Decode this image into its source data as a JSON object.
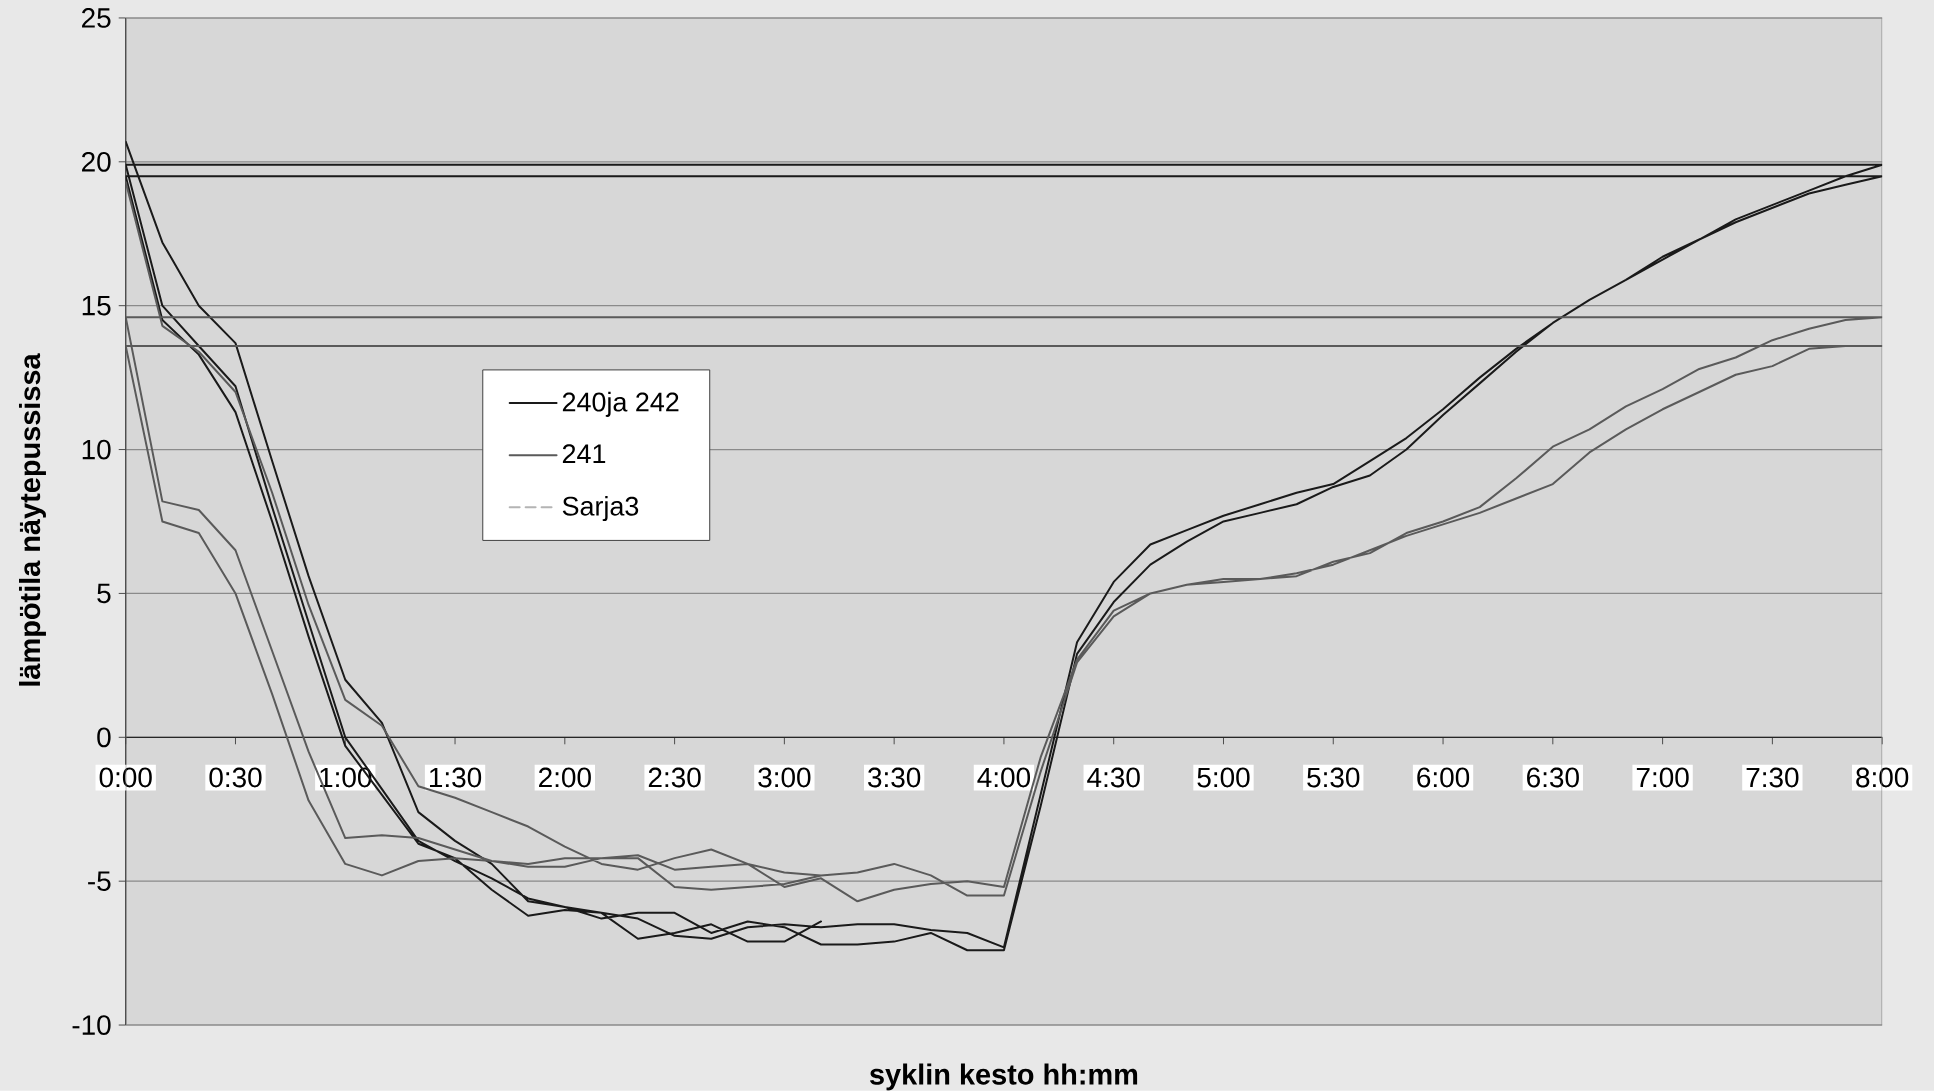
{
  "chart_data": {
    "type": "line",
    "xlabel": "syklin kesto hh:mm",
    "ylabel": "lämpötila näytepussissa",
    "xlim": [
      0,
      8
    ],
    "ylim": [
      -10,
      25
    ],
    "xticks": [
      {
        "value": 0,
        "label": "0:00"
      },
      {
        "value": 0.5,
        "label": "0:30"
      },
      {
        "value": 1,
        "label": "1:00"
      },
      {
        "value": 1.5,
        "label": "1:30"
      },
      {
        "value": 2,
        "label": "2:00"
      },
      {
        "value": 2.5,
        "label": "2:30"
      },
      {
        "value": 3,
        "label": "3:00"
      },
      {
        "value": 3.5,
        "label": "3:30"
      },
      {
        "value": 4,
        "label": "4:00"
      },
      {
        "value": 4.5,
        "label": "4:30"
      },
      {
        "value": 5,
        "label": "5:00"
      },
      {
        "value": 5.5,
        "label": "5:30"
      },
      {
        "value": 6,
        "label": "6:00"
      },
      {
        "value": 6.5,
        "label": "6:30"
      },
      {
        "value": 7,
        "label": "7:00"
      },
      {
        "value": 7.5,
        "label": "7:30"
      },
      {
        "value": 8,
        "label": "8:00"
      }
    ],
    "yticks": [
      -10,
      -5,
      0,
      5,
      10,
      15,
      20,
      25
    ],
    "grid": "y",
    "legend": "top left",
    "series": [
      {
        "name": "240ja 242",
        "color": "#1a1a1a",
        "x": [
          0,
          0.167,
          0.333,
          0.5,
          0.667,
          0.833,
          1,
          1.167,
          1.333,
          1.5,
          1.667,
          1.833,
          2,
          2.167,
          2.333,
          2.5,
          2.667,
          2.833,
          3,
          3.167,
          3.333,
          3.5,
          3.667,
          3.833,
          4,
          4.167,
          4.333,
          4.5,
          4.667,
          4.833,
          5,
          5.167,
          5.333,
          5.5,
          5.667,
          5.833,
          6,
          6.167,
          6.333,
          6.5,
          6.667,
          6.833,
          7,
          7.167,
          7.333,
          7.5,
          7.667,
          7.833,
          8,
          0,
          0.167,
          0.333,
          0.5,
          0.667,
          0.833,
          1,
          1.167,
          1.333,
          1.5,
          1.667,
          1.833,
          2,
          2.167,
          2.333,
          2.5,
          2.667,
          2.833,
          3,
          3.167,
          3.333,
          3.5,
          3.667,
          3.833,
          4,
          4.167,
          4.333,
          4.5,
          4.667,
          4.833,
          5,
          5.167,
          5.333,
          5.5,
          5.667,
          5.833,
          6,
          6.167,
          6.333,
          6.5,
          6.667,
          6.833,
          7,
          7.167,
          7.333,
          7.5,
          7.667,
          7.833,
          8,
          0,
          0.167,
          0.333,
          0.5,
          0.667,
          0.833,
          1,
          1.167,
          1.333,
          1.5,
          1.667,
          1.833,
          2,
          2.167,
          2.333,
          2.5,
          2.667,
          2.833,
          3,
          3.167
        ],
        "values": [
          20.7,
          17.2,
          15.0,
          13.7,
          9.6,
          5.6,
          2.0,
          0.5,
          -2.6,
          -3.6,
          -4.4,
          -5.7,
          -5.9,
          -6.1,
          -6.3,
          -6.9,
          -7.0,
          -6.6,
          -6.5,
          -6.6,
          -6.5,
          -6.5,
          -6.7,
          -6.8,
          -7.3,
          -2.0,
          3.3,
          5.4,
          6.7,
          7.2,
          7.7,
          8.1,
          8.5,
          8.8,
          9.6,
          10.4,
          11.4,
          12.5,
          13.5,
          14.4,
          15.2,
          15.9,
          16.7,
          17.3,
          18.0,
          18.5,
          19.0,
          19.5,
          19.9,
          19.9,
          15.0,
          13.6,
          12.2,
          8.0,
          4.0,
          0.0,
          -1.8,
          -3.6,
          -4.3,
          -4.9,
          -5.6,
          -5.9,
          -6.3,
          -6.1,
          -6.1,
          -6.8,
          -6.4,
          -6.6,
          -7.2,
          -7.2,
          -7.1,
          -6.8,
          -7.4,
          -7.4,
          -2.4,
          2.9,
          4.7,
          6.0,
          6.8,
          7.5,
          7.8,
          8.1,
          8.7,
          9.1,
          10.0,
          11.2,
          12.3,
          13.4,
          14.4,
          15.2,
          15.9,
          16.6,
          17.3,
          17.9,
          18.4,
          18.9,
          19.2,
          19.5,
          19.5,
          14.5,
          13.3,
          11.3,
          7.5,
          3.5,
          -0.3,
          -2.0,
          -3.7,
          -4.2,
          -5.3,
          -6.2,
          -6.0,
          -6.1,
          -7.0,
          -6.8,
          -6.5,
          -7.1,
          -7.1,
          -6.4
        ]
      },
      {
        "name": "241",
        "color": "#5a5a5a",
        "x": [
          0,
          0.167,
          0.333,
          0.5,
          0.667,
          0.833,
          1,
          1.167,
          1.333,
          1.5,
          1.667,
          1.833,
          2,
          2.167,
          2.333,
          2.5,
          2.667,
          2.833,
          3,
          3.167,
          3.333,
          3.5,
          3.667,
          3.833,
          4,
          4.167,
          4.333,
          4.5,
          4.667,
          4.833,
          5,
          5.167,
          5.333,
          5.5,
          5.667,
          5.833,
          6,
          6.167,
          6.333,
          6.5,
          6.667,
          6.833,
          7,
          7.167,
          7.333,
          7.5,
          7.667,
          7.833,
          8,
          0,
          0.167,
          0.333,
          0.5,
          0.667,
          0.833,
          1,
          1.167,
          1.333,
          1.5,
          1.667,
          1.833,
          2,
          2.167,
          2.333,
          2.5,
          2.667,
          2.833,
          3,
          3.167,
          3.333,
          3.5,
          3.667,
          3.833,
          4,
          4.167,
          4.333,
          4.5,
          4.667,
          4.833,
          5,
          5.167,
          5.333,
          5.5,
          5.667,
          5.833,
          6,
          6.167,
          6.333,
          6.5,
          6.667,
          6.833,
          7,
          7.167,
          7.333,
          7.5,
          7.667,
          7.833,
          8,
          0,
          0.167,
          0.333,
          0.5,
          0.667,
          0.833,
          1,
          1.167,
          1.333,
          1.5,
          1.667,
          1.833,
          2,
          2.167,
          2.333,
          2.5,
          2.667,
          2.833,
          3,
          3.167
        ],
        "values": [
          19.3,
          14.3,
          13.4,
          12.0,
          8.5,
          4.6,
          1.3,
          0.4,
          -1.7,
          -2.1,
          -2.6,
          -3.1,
          -3.8,
          -4.4,
          -4.6,
          -4.2,
          -3.9,
          -4.4,
          -5.2,
          -4.9,
          -5.7,
          -5.3,
          -5.1,
          -5.0,
          -5.2,
          -0.7,
          2.7,
          4.4,
          5.0,
          5.3,
          5.5,
          5.5,
          5.6,
          6.1,
          6.4,
          7.1,
          7.5,
          8.0,
          9.0,
          10.1,
          10.7,
          11.5,
          12.1,
          12.8,
          13.2,
          13.8,
          14.2,
          14.5,
          14.6,
          14.6,
          8.2,
          7.9,
          6.5,
          3.0,
          -0.5,
          -3.5,
          -3.4,
          -3.5,
          -3.9,
          -4.3,
          -4.5,
          -4.5,
          -4.2,
          -4.1,
          -4.6,
          -4.5,
          -4.4,
          -4.7,
          -4.8,
          -4.7,
          -4.4,
          -4.8,
          -5.5,
          -5.5,
          -1.2,
          2.6,
          4.2,
          5.0,
          5.3,
          5.4,
          5.5,
          5.7,
          6.0,
          6.5,
          7.0,
          7.4,
          7.8,
          8.3,
          8.8,
          9.9,
          10.7,
          11.4,
          12.0,
          12.6,
          12.9,
          13.5,
          13.6,
          13.6,
          13.6,
          7.5,
          7.1,
          5.0,
          1.5,
          -2.2,
          -4.4,
          -4.8,
          -4.3,
          -4.2,
          -4.3,
          -4.4,
          -4.2,
          -4.2,
          -4.2,
          -5.2,
          -5.3,
          -5.2,
          -5.1,
          -4.8
        ]
      },
      {
        "name": "Sarja3",
        "color": "#b4b4b4",
        "line_style": "dashed"
      }
    ]
  }
}
